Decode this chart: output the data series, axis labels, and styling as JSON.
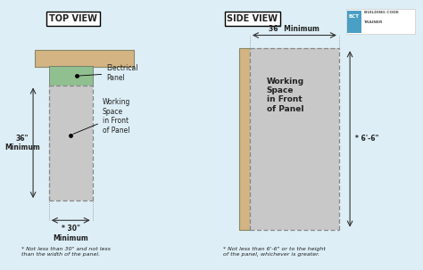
{
  "bg_color": "#ddeef6",
  "wall_color": "#d4b483",
  "panel_color": "#90c090",
  "working_space_color": "#c8c8c8",
  "dashed_line_color": "#888888",
  "arrow_color": "#333333",
  "text_color": "#222222",
  "left_title": "TOP VIEW",
  "right_title": "SIDE VIEW",
  "footnote_left": "* Not less than 30\" and not less\nthan the width of the panel.",
  "footnote_right": "* Not less than 6'-6\" or to the height\nof the panel, whichever is greater.",
  "label_36_top": "36\" Minimum",
  "label_36_left": "36\"\nMinimum",
  "label_30_bottom": "* 30\"\nMinimum",
  "label_66_right": "* 6'-6\"",
  "label_elec_panel": "Electrical\nPanel",
  "label_working_space_left": "Working\nSpace\nin Front\nof Panel",
  "label_working_space_right": "Working\nSpace\nin Front\nof Panel",
  "bct_logo_color": "#4a9fc4",
  "bct_logo_text_color": "#555555"
}
